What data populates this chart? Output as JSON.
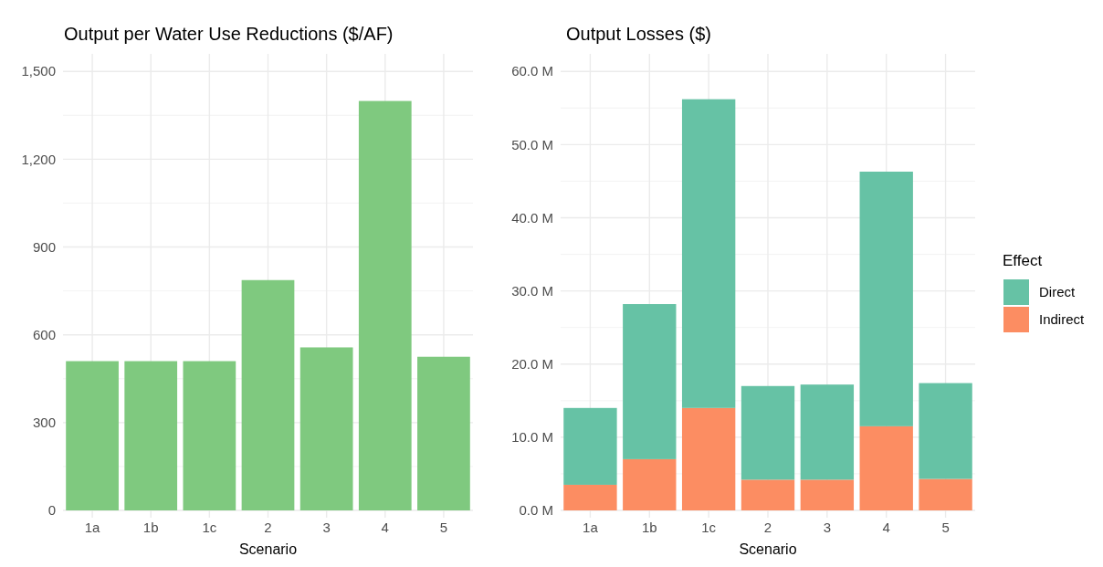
{
  "chart_data": [
    {
      "type": "bar",
      "title": "Output per Water Use Reductions ($/AF)",
      "xlabel": "Scenario",
      "categories": [
        "1a",
        "1b",
        "1c",
        "2",
        "3",
        "4",
        "5"
      ],
      "values": [
        510,
        510,
        510,
        787,
        557,
        1399,
        525
      ],
      "color": "#7fc97f",
      "ylim": [
        0,
        1560
      ],
      "yticks": [
        0,
        300,
        600,
        900,
        {
          "value": 1200,
          "label": "1,200"
        },
        {
          "value": 1500,
          "label": "1,500"
        }
      ],
      "grid": true
    },
    {
      "type": "bar",
      "title": "Output Losses ($)",
      "xlabel": "Scenario",
      "legend_title": "Effect",
      "categories": [
        "1a",
        "1b",
        "1c",
        "2",
        "3",
        "4",
        "5"
      ],
      "stacked": true,
      "legend": "right",
      "series": [
        {
          "name": "Indirect",
          "color": "#fc8d62",
          "values": [
            3.5,
            7.0,
            14.0,
            4.2,
            4.2,
            11.5,
            4.3
          ]
        },
        {
          "name": "Direct",
          "color": "#66c2a5",
          "values": [
            10.5,
            21.2,
            42.2,
            12.8,
            13.0,
            34.8,
            13.1
          ]
        }
      ],
      "ylim": [
        0,
        62.4
      ],
      "yticks": [
        {
          "value": 0,
          "label": "0.0 M"
        },
        {
          "value": 10,
          "label": "10.0 M"
        },
        {
          "value": 20,
          "label": "20.0 M"
        },
        {
          "value": 30,
          "label": "30.0 M"
        },
        {
          "value": 40,
          "label": "40.0 M"
        },
        {
          "value": 50,
          "label": "50.0 M"
        },
        {
          "value": 60,
          "label": "60.0 M"
        }
      ],
      "grid": true
    }
  ]
}
